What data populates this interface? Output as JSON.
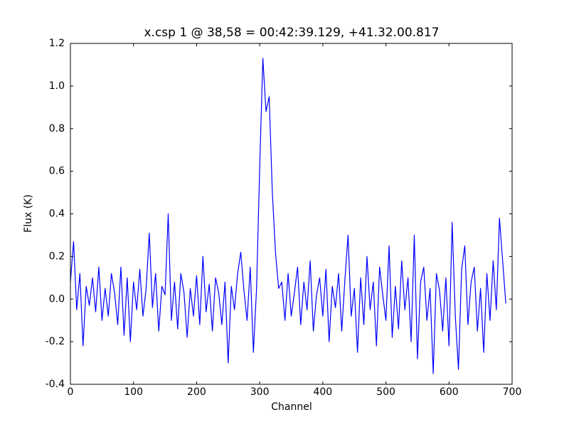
{
  "chart_data": {
    "type": "line",
    "title": "x.csp 1 @ 38,58 = 00:42:39.129, +41.32.00.817",
    "x_label": "Channel",
    "y_label": "Flux (K)",
    "color": "#0000ff",
    "xlim": [
      0,
      700
    ],
    "ylim": [
      -0.4,
      1.2
    ],
    "xticks": [
      0,
      100,
      200,
      300,
      400,
      500,
      600,
      700
    ],
    "yticks": [
      -0.4,
      -0.2,
      {
        "value": 0,
        "label": "0.0"
      },
      0.2,
      0.4,
      0.6,
      0.8,
      {
        "value": 1,
        "label": "1.0"
      },
      1.2
    ],
    "x": [
      0,
      5,
      10,
      15,
      20,
      25,
      30,
      35,
      40,
      45,
      50,
      55,
      60,
      65,
      70,
      75,
      80,
      85,
      90,
      95,
      100,
      105,
      110,
      115,
      120,
      125,
      130,
      135,
      140,
      145,
      150,
      155,
      160,
      165,
      170,
      175,
      180,
      185,
      190,
      195,
      200,
      205,
      210,
      215,
      220,
      225,
      230,
      235,
      240,
      245,
      250,
      255,
      260,
      265,
      270,
      275,
      280,
      285,
      290,
      295,
      300,
      305,
      310,
      315,
      320,
      325,
      330,
      335,
      340,
      345,
      350,
      355,
      360,
      365,
      370,
      375,
      380,
      385,
      390,
      395,
      400,
      405,
      410,
      415,
      420,
      425,
      430,
      435,
      440,
      445,
      450,
      455,
      460,
      465,
      470,
      475,
      480,
      485,
      490,
      495,
      500,
      505,
      510,
      515,
      520,
      525,
      530,
      535,
      540,
      545,
      550,
      555,
      560,
      565,
      570,
      575,
      580,
      585,
      590,
      595,
      600,
      605,
      610,
      615,
      620,
      625,
      630,
      635,
      640,
      645,
      650,
      655,
      660,
      665,
      670,
      675,
      680,
      685,
      690
    ],
    "values": [
      0.08,
      0.27,
      -0.05,
      0.12,
      -0.22,
      0.06,
      -0.03,
      0.1,
      -0.06,
      0.15,
      -0.1,
      0.05,
      -0.08,
      0.12,
      0.03,
      -0.12,
      0.15,
      -0.17,
      0.1,
      -0.2,
      0.08,
      -0.05,
      0.14,
      -0.08,
      0.05,
      0.31,
      -0.04,
      0.12,
      -0.15,
      0.06,
      0.02,
      0.4,
      -0.1,
      0.08,
      -0.14,
      0.12,
      0.03,
      -0.18,
      0.05,
      -0.08,
      0.11,
      -0.12,
      0.2,
      -0.06,
      0.07,
      -0.15,
      0.1,
      0.03,
      -0.12,
      0.08,
      -0.3,
      0.06,
      -0.05,
      0.12,
      0.22,
      0.04,
      -0.1,
      0.15,
      -0.25,
      0.05,
      0.62,
      1.13,
      0.88,
      0.95,
      0.5,
      0.22,
      0.05,
      0.08,
      -0.1,
      0.12,
      -0.08,
      0.03,
      0.15,
      -0.12,
      0.08,
      -0.05,
      0.18,
      -0.15,
      0.02,
      0.1,
      -0.08,
      0.14,
      -0.2,
      0.06,
      -0.04,
      0.12,
      -0.15,
      0.09,
      0.3,
      -0.08,
      0.05,
      -0.25,
      0.1,
      -0.12,
      0.2,
      -0.05,
      0.08,
      -0.22,
      0.15,
      0.02,
      -0.1,
      0.25,
      -0.18,
      0.06,
      -0.14,
      0.18,
      -0.05,
      0.1,
      -0.2,
      0.3,
      -0.28,
      0.08,
      0.15,
      -0.1,
      0.05,
      -0.35,
      0.12,
      0.04,
      -0.15,
      0.1,
      -0.22,
      0.36,
      -0.08,
      -0.33,
      0.14,
      0.25,
      -0.12,
      0.08,
      0.15,
      -0.15,
      0.05,
      -0.25,
      0.12,
      -0.1,
      0.18,
      -0.05,
      0.38,
      0.18,
      -0.02
    ]
  }
}
